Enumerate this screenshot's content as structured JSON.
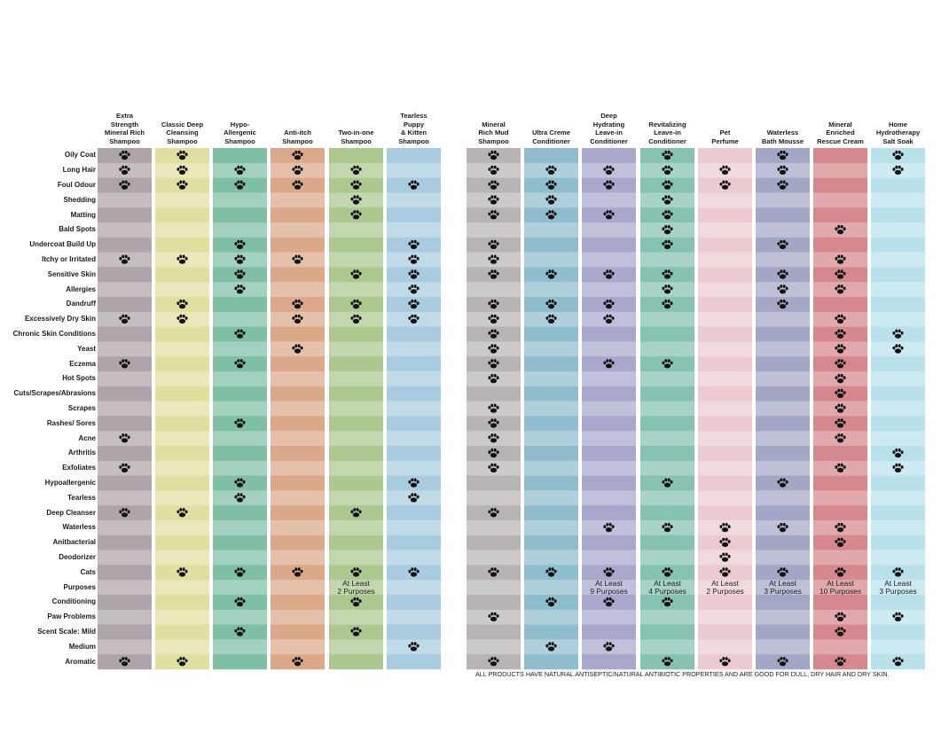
{
  "chart_data": {
    "type": "table",
    "products": [
      {
        "name": "Extra Strength Mineral Rich Shampoo",
        "lines": [
          "Extra",
          "Strength",
          "Mineral Rich",
          "Shampoo"
        ],
        "color": "#ada5a9"
      },
      {
        "name": "Classic Deep Cleansing Shampoo",
        "lines": [
          "Classic Deep",
          "Cleansing",
          "Shampoo"
        ],
        "color": "#dfdf9f"
      },
      {
        "name": "Hypo-Allergenic Shampoo",
        "lines": [
          "Hypo-",
          "Allergenic",
          "Shampoo"
        ],
        "color": "#7fbfa6"
      },
      {
        "name": "Anti-itch Shampoo",
        "lines": [
          "Anti-itch",
          "Shampoo"
        ],
        "color": "#dba98a"
      },
      {
        "name": "Two-in-one Shampoo",
        "lines": [
          "Two-in-one",
          "Shampoo"
        ],
        "color": "#acc88f"
      },
      {
        "name": "Tearless Puppy & Kitten Shampoo",
        "lines": [
          "Tearless",
          "Puppy",
          "& Kitten",
          "Shampoo"
        ],
        "color": "#a8cbdf"
      },
      {
        "name": "Mineral Rich Mud Shampoo",
        "lines": [
          "Mineral",
          "Rich Mud",
          "Shampoo"
        ],
        "color": "#b8b4b6"
      },
      {
        "name": "Ultra Creme Conditioner",
        "lines": [
          "Ultra Creme",
          "Conditioner"
        ],
        "color": "#8fbdcd"
      },
      {
        "name": "Deep Hydrating Leave-in Conditioner",
        "lines": [
          "Deep",
          "Hydrating",
          "Leave-in",
          "Conditioner"
        ],
        "color": "#a9a8cc"
      },
      {
        "name": "Revitalizing Leave-in Conditioner",
        "lines": [
          "Revitalizing",
          "Leave-in",
          "Conditioner"
        ],
        "color": "#85c2b2"
      },
      {
        "name": "Pet Perfume",
        "lines": [
          "Pet",
          "Perfume"
        ],
        "color": "#ebcbd1"
      },
      {
        "name": "Waterless Bath Mousse",
        "lines": [
          "Waterless",
          "Bath Mousse"
        ],
        "color": "#a3a7c6"
      },
      {
        "name": "Mineral Enriched Rescue Cream",
        "lines": [
          "Mineral",
          "Enriched",
          "Rescue Cream"
        ],
        "color": "#d6888f"
      },
      {
        "name": "Home Hydrotherapy Salt Soak",
        "lines": [
          "Home",
          "Hydrotherapy",
          "Salt Soak"
        ],
        "color": "#b9e1ec"
      }
    ],
    "rows": [
      {
        "label": "Oily Coat",
        "marks": [
          1,
          1,
          0,
          1,
          0,
          0,
          1,
          0,
          0,
          1,
          0,
          1,
          0,
          1
        ]
      },
      {
        "label": "Long Hair",
        "marks": [
          1,
          1,
          1,
          1,
          1,
          0,
          1,
          1,
          1,
          1,
          1,
          1,
          0,
          1
        ]
      },
      {
        "label": "Foul Odour",
        "marks": [
          1,
          1,
          1,
          1,
          1,
          1,
          1,
          1,
          1,
          1,
          1,
          1,
          0,
          0
        ]
      },
      {
        "label": "Shedding",
        "marks": [
          0,
          0,
          0,
          0,
          1,
          0,
          1,
          1,
          0,
          1,
          0,
          0,
          0,
          0
        ]
      },
      {
        "label": "Matting",
        "marks": [
          0,
          0,
          0,
          0,
          1,
          0,
          1,
          1,
          1,
          1,
          0,
          0,
          0,
          0
        ]
      },
      {
        "label": "Bald Spots",
        "marks": [
          0,
          0,
          0,
          0,
          0,
          0,
          0,
          0,
          0,
          1,
          0,
          0,
          1,
          0
        ]
      },
      {
        "label": "Undercoat Build Up",
        "marks": [
          0,
          0,
          1,
          0,
          0,
          1,
          1,
          0,
          0,
          1,
          0,
          1,
          0,
          0
        ]
      },
      {
        "label": "Itchy or Irritated",
        "marks": [
          1,
          1,
          1,
          1,
          0,
          1,
          1,
          0,
          0,
          0,
          0,
          0,
          1,
          0
        ]
      },
      {
        "label": "Sensitive Skin",
        "marks": [
          0,
          0,
          1,
          0,
          1,
          1,
          1,
          1,
          1,
          1,
          0,
          1,
          1,
          0
        ]
      },
      {
        "label": "Allergies",
        "marks": [
          0,
          0,
          1,
          0,
          0,
          1,
          0,
          0,
          0,
          1,
          0,
          1,
          1,
          0
        ]
      },
      {
        "label": "Dandruff",
        "marks": [
          0,
          1,
          0,
          1,
          1,
          1,
          1,
          1,
          1,
          1,
          0,
          1,
          0,
          0
        ]
      },
      {
        "label": "Excessively Dry Skin",
        "marks": [
          1,
          1,
          0,
          1,
          1,
          1,
          1,
          1,
          1,
          0,
          0,
          0,
          1,
          0
        ]
      },
      {
        "label": "Chronic Skin Conditions",
        "marks": [
          0,
          0,
          1,
          0,
          0,
          0,
          1,
          0,
          0,
          0,
          0,
          0,
          1,
          1
        ]
      },
      {
        "label": "Yeast",
        "marks": [
          0,
          0,
          0,
          1,
          0,
          0,
          1,
          0,
          0,
          0,
          0,
          0,
          1,
          1
        ]
      },
      {
        "label": "Eczema",
        "marks": [
          1,
          0,
          1,
          0,
          0,
          0,
          1,
          0,
          1,
          1,
          0,
          0,
          1,
          0
        ]
      },
      {
        "label": "Hot Spots",
        "marks": [
          0,
          0,
          0,
          0,
          0,
          0,
          1,
          0,
          0,
          0,
          0,
          0,
          1,
          0
        ]
      },
      {
        "label": "Cuts/Scrapes/Abrasions",
        "marks": [
          0,
          0,
          0,
          0,
          0,
          0,
          0,
          0,
          0,
          0,
          0,
          0,
          1,
          0
        ]
      },
      {
        "label": "Scrapes",
        "marks": [
          0,
          0,
          0,
          0,
          0,
          0,
          1,
          0,
          0,
          0,
          0,
          0,
          1,
          0
        ]
      },
      {
        "label": "Rashes/ Sores",
        "marks": [
          0,
          0,
          1,
          0,
          0,
          0,
          1,
          0,
          0,
          0,
          0,
          0,
          1,
          0
        ]
      },
      {
        "label": "Acne",
        "marks": [
          1,
          0,
          0,
          0,
          0,
          0,
          1,
          0,
          0,
          0,
          0,
          0,
          1,
          0
        ]
      },
      {
        "label": "Arthritis",
        "marks": [
          0,
          0,
          0,
          0,
          0,
          0,
          1,
          0,
          0,
          0,
          0,
          0,
          0,
          1
        ]
      },
      {
        "label": "Exfoliates",
        "marks": [
          1,
          0,
          0,
          0,
          0,
          0,
          1,
          0,
          0,
          0,
          0,
          0,
          1,
          1
        ]
      },
      {
        "label": "Hypoallergenic",
        "marks": [
          0,
          0,
          1,
          0,
          0,
          1,
          0,
          0,
          0,
          1,
          0,
          1,
          0,
          0
        ]
      },
      {
        "label": "Tearless",
        "marks": [
          0,
          0,
          1,
          0,
          0,
          1,
          0,
          0,
          0,
          0,
          0,
          0,
          0,
          0
        ]
      },
      {
        "label": "Deep Cleanser",
        "marks": [
          1,
          1,
          0,
          0,
          1,
          0,
          1,
          0,
          0,
          0,
          0,
          0,
          0,
          0
        ]
      },
      {
        "label": "Waterless",
        "marks": [
          0,
          0,
          0,
          0,
          0,
          0,
          0,
          0,
          1,
          1,
          1,
          1,
          1,
          0
        ]
      },
      {
        "label": "Anitbacterial",
        "marks": [
          0,
          0,
          0,
          0,
          0,
          0,
          0,
          0,
          0,
          0,
          1,
          0,
          1,
          0
        ]
      },
      {
        "label": "Deodorizer",
        "marks": [
          0,
          0,
          0,
          0,
          0,
          0,
          0,
          0,
          0,
          0,
          1,
          0,
          0,
          0
        ]
      },
      {
        "label": "Cats",
        "marks": [
          0,
          1,
          1,
          1,
          1,
          1,
          1,
          1,
          1,
          1,
          1,
          1,
          1,
          1
        ]
      },
      {
        "label": "Purposes",
        "marks": [
          0,
          0,
          0,
          0,
          0,
          0,
          0,
          0,
          0,
          0,
          0,
          0,
          0,
          0
        ]
      },
      {
        "label": "Conditioning",
        "marks": [
          0,
          0,
          1,
          0,
          1,
          0,
          0,
          1,
          1,
          1,
          0,
          0,
          0,
          0
        ]
      },
      {
        "label": "Paw Problems",
        "marks": [
          0,
          0,
          0,
          0,
          0,
          0,
          1,
          0,
          0,
          0,
          0,
          0,
          1,
          1
        ]
      },
      {
        "label": "Scent Scale:  Mild",
        "marks": [
          0,
          0,
          1,
          0,
          1,
          0,
          0,
          0,
          0,
          0,
          0,
          0,
          1,
          0
        ]
      },
      {
        "label": "Medium",
        "marks": [
          0,
          0,
          0,
          0,
          0,
          1,
          0,
          1,
          1,
          0,
          0,
          0,
          0,
          0
        ]
      },
      {
        "label": "Aromatic",
        "marks": [
          1,
          1,
          0,
          1,
          0,
          0,
          1,
          0,
          0,
          1,
          1,
          1,
          1,
          1
        ]
      }
    ],
    "purposes": [
      {
        "col": 4,
        "lines": [
          "At Least",
          "2 Purposes"
        ]
      },
      {
        "col": 8,
        "lines": [
          "At Least",
          "9 Purposes"
        ]
      },
      {
        "col": 9,
        "lines": [
          "At Least",
          "4 Purposes"
        ]
      },
      {
        "col": 10,
        "lines": [
          "At Least",
          "2 Purposes"
        ]
      },
      {
        "col": 11,
        "lines": [
          "At Least",
          "3 Purposes"
        ]
      },
      {
        "col": 12,
        "lines": [
          "At Least",
          "10 Purposes"
        ]
      },
      {
        "col": 13,
        "lines": [
          "At Least",
          "3 Purposes"
        ]
      }
    ],
    "footnote": "ALL PRODUCTS HAVE NATURAL ANTISEPTIC/NATURAL ANTIBIOTIC PROPERTIES AND ARE GOOD FOR DULL, DRY HAIR AND DRY SKIN."
  }
}
